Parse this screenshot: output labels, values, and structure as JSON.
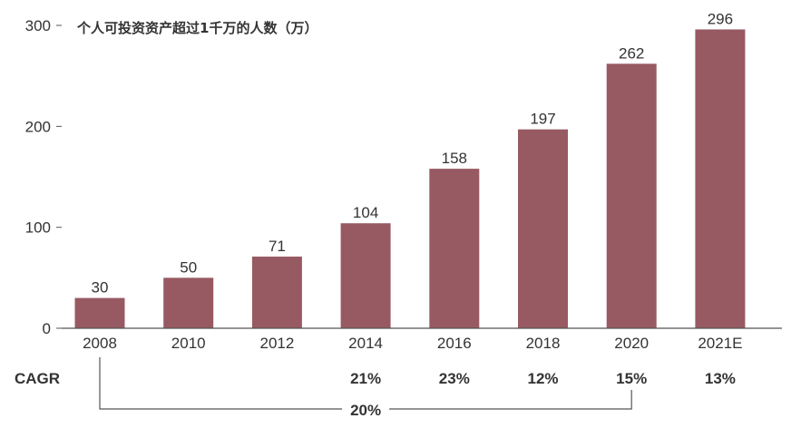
{
  "chart_data": {
    "type": "bar",
    "title": "个人可投资资产超过1千万的人数（万）",
    "categories": [
      "2008",
      "2010",
      "2012",
      "2014",
      "2016",
      "2018",
      "2020",
      "2021E"
    ],
    "values": [
      30,
      50,
      71,
      104,
      158,
      197,
      262,
      296
    ],
    "data_labels": [
      "30",
      "50",
      "71",
      "104",
      "158",
      "197",
      "262",
      "296"
    ],
    "ylim": [
      0,
      300
    ],
    "yticks": [
      0,
      100,
      200,
      300
    ],
    "ytick_labels": [
      "0",
      "100",
      "200",
      "300"
    ],
    "grid": false,
    "colors": {
      "bar": "#985a62",
      "axis": "#555555",
      "text": "#333333"
    },
    "cagr": {
      "label": "CAGR",
      "values": [
        {
          "category": "2014",
          "text": "21%"
        },
        {
          "category": "2016",
          "text": "23%"
        },
        {
          "category": "2018",
          "text": "12%"
        },
        {
          "category": "2020",
          "text": "15%"
        },
        {
          "category": "2021E",
          "text": "13%"
        }
      ],
      "overall": {
        "from": "2008",
        "to": "2020",
        "text": "20%"
      }
    }
  }
}
